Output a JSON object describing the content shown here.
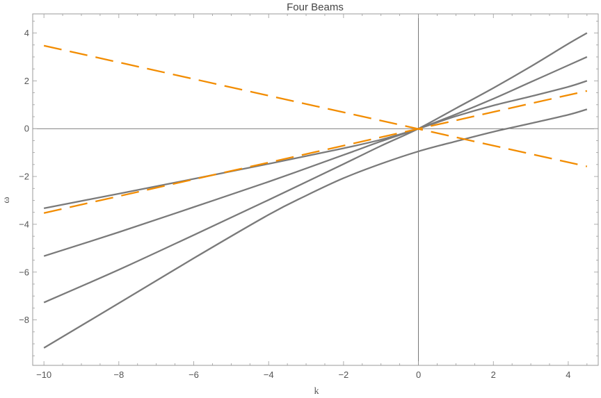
{
  "chart_data": {
    "type": "line",
    "title": "Four Beams",
    "xlabel": "k",
    "ylabel": "ω",
    "xlim": [
      -10.3,
      4.8
    ],
    "ylim": [
      -9.9,
      4.8
    ],
    "xticks": [
      -10,
      -8,
      -6,
      -4,
      -2,
      0,
      2,
      4
    ],
    "yticks": [
      -8,
      -6,
      -4,
      -2,
      0,
      2,
      4
    ],
    "xtick_labels": [
      "−10",
      "−8",
      "−6",
      "−4",
      "−2",
      "0",
      "2",
      "4"
    ],
    "ytick_labels": [
      "−8",
      "−6",
      "−4",
      "−2",
      "0",
      "2",
      "4"
    ],
    "grid": false,
    "frame": true,
    "series": [
      {
        "style": "solid",
        "color": "#7a7a7a",
        "x": [
          -10,
          -8,
          -6,
          -4,
          -2,
          -1,
          0,
          1,
          2,
          3,
          4,
          4.5
        ],
        "y": [
          -3.33,
          -2.72,
          -2.1,
          -1.47,
          -0.82,
          -0.46,
          0,
          0.52,
          0.97,
          1.35,
          1.75,
          2.0
        ]
      },
      {
        "style": "solid",
        "color": "#7a7a7a",
        "x": [
          -10,
          -8,
          -6,
          -4,
          -2,
          -1,
          0,
          1,
          2,
          3,
          4,
          4.5
        ],
        "y": [
          -5.33,
          -4.33,
          -3.28,
          -2.22,
          -1.1,
          -0.53,
          0,
          0.6,
          1.25,
          1.95,
          2.65,
          3.0
        ]
      },
      {
        "style": "solid",
        "color": "#7a7a7a",
        "x": [
          -10,
          -8,
          -6,
          -4,
          -2,
          -1,
          0,
          1,
          2,
          3,
          4,
          4.5
        ],
        "y": [
          -7.27,
          -5.9,
          -4.45,
          -2.98,
          -1.48,
          -0.72,
          0,
          0.85,
          1.7,
          2.6,
          3.55,
          4.0
        ]
      },
      {
        "style": "solid",
        "color": "#7a7a7a",
        "x": [
          -10,
          -8,
          -6,
          -4,
          -3,
          -2,
          -1,
          0,
          1,
          2,
          3,
          4,
          4.5
        ],
        "y": [
          -9.17,
          -7.3,
          -5.42,
          -3.6,
          -2.8,
          -2.07,
          -1.47,
          -0.95,
          -0.53,
          -0.13,
          0.22,
          0.58,
          0.81
        ]
      },
      {
        "style": "dashed",
        "color": "#f28c00",
        "x": [
          -10,
          4.5
        ],
        "y": [
          3.47,
          -1.58
        ]
      },
      {
        "style": "dashed",
        "color": "#f28c00",
        "x": [
          -10,
          4.5
        ],
        "y": [
          -3.53,
          1.58
        ]
      }
    ]
  }
}
